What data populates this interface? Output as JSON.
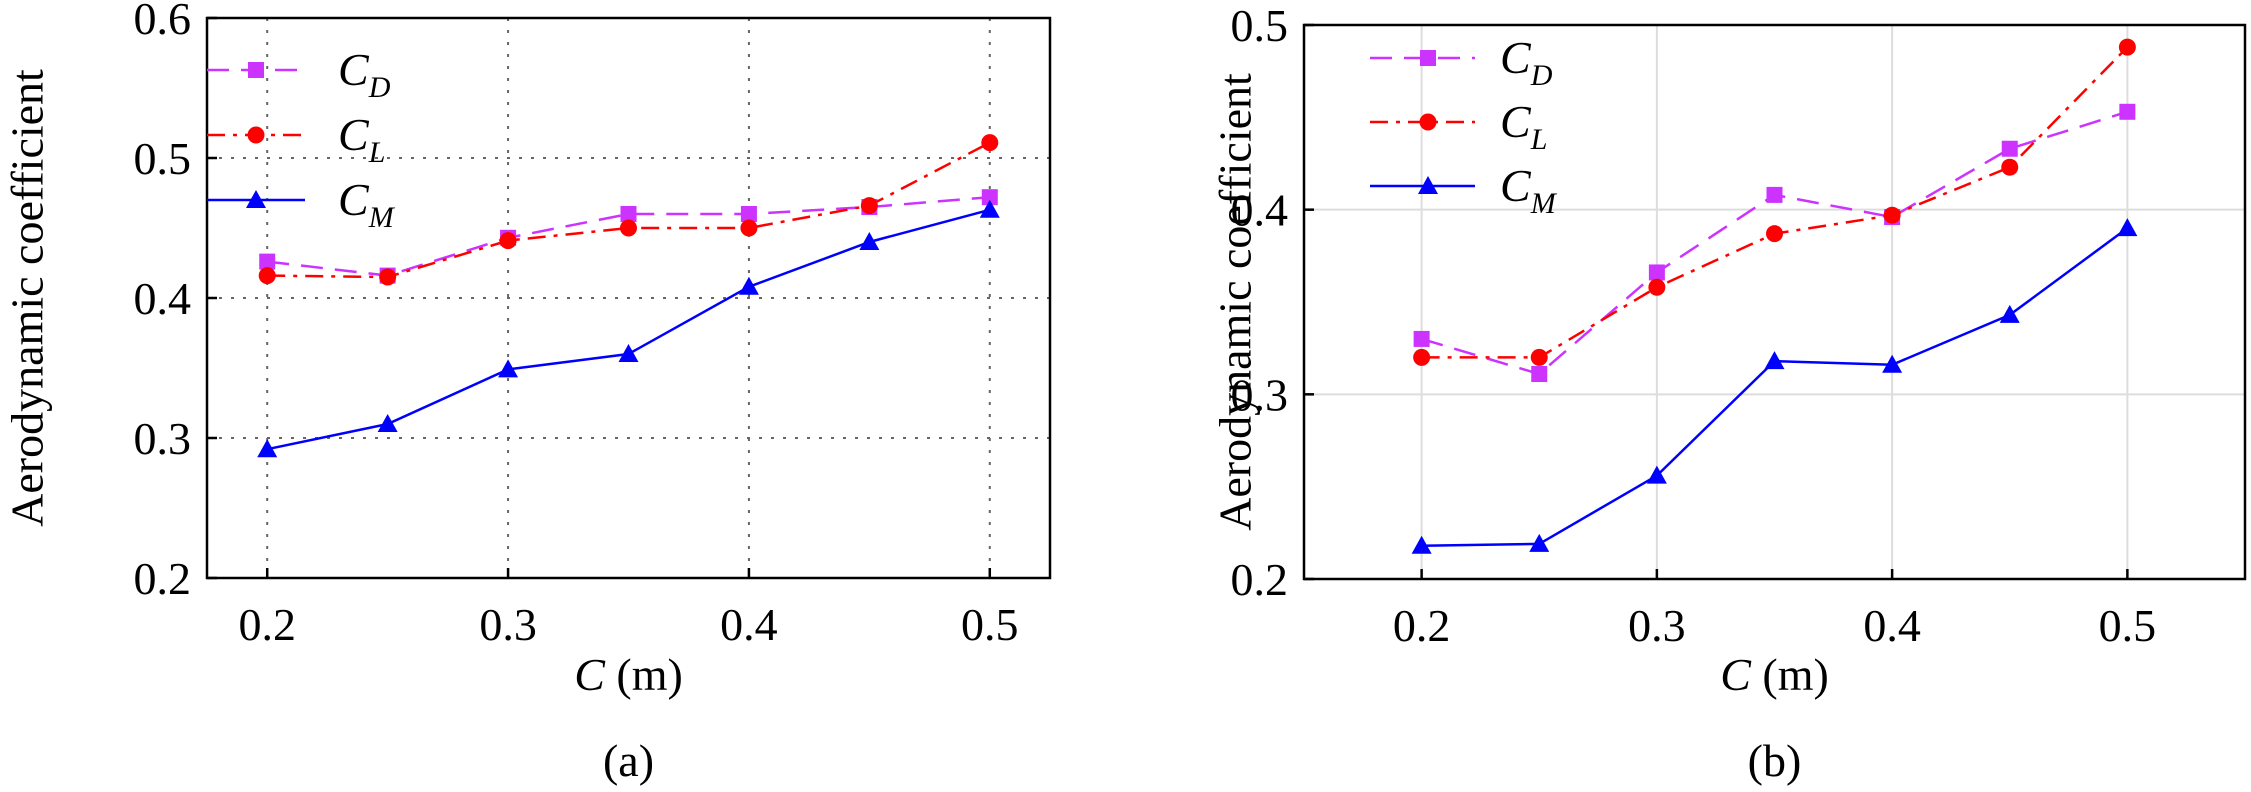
{
  "chart_data": [
    {
      "type": "line",
      "panel_label": "(a)",
      "xlabel_var": "C",
      "xlabel_unit": " (m)",
      "ylabel": "Aerodynamic coefficient",
      "xlim": [
        0.175,
        0.525
      ],
      "ylim": [
        0.2,
        0.6
      ],
      "xticks": [
        0.2,
        0.3,
        0.4,
        0.5
      ],
      "xtick_labels": [
        "0.2",
        "0.3",
        "0.4",
        "0.5"
      ],
      "yticks": [
        0.2,
        0.3,
        0.4,
        0.5,
        0.6
      ],
      "ytick_labels": [
        "0.2",
        "0.3",
        "0.4",
        "0.5",
        "0.6"
      ],
      "grid": "dotted, major ticks",
      "legend_position": "top-left",
      "x": [
        0.2,
        0.25,
        0.3,
        0.35,
        0.4,
        0.45,
        0.5
      ],
      "series": [
        {
          "name": "C",
          "subscript": "D",
          "color": "#cc33ff",
          "marker": "square",
          "dash": "dashed",
          "values": [
            0.426,
            0.416,
            0.443,
            0.46,
            0.46,
            0.465,
            0.472
          ]
        },
        {
          "name": "C",
          "subscript": "L",
          "color": "#ff0000",
          "marker": "circle",
          "dash": "dash-dot",
          "values": [
            0.416,
            0.415,
            0.441,
            0.45,
            0.45,
            0.466,
            0.511
          ]
        },
        {
          "name": "C",
          "subscript": "M",
          "color": "#0000ff",
          "marker": "triangle",
          "dash": "solid",
          "values": [
            0.292,
            0.31,
            0.349,
            0.36,
            0.408,
            0.44,
            0.463
          ]
        }
      ]
    },
    {
      "type": "line",
      "panel_label": "(b)",
      "xlabel_var": "C",
      "xlabel_unit": " (m)",
      "ylabel": "Aerodynamic coefficient",
      "xlim": [
        0.15,
        0.55
      ],
      "ylim": [
        0.2,
        0.5
      ],
      "xticks": [
        0.2,
        0.3,
        0.4,
        0.5
      ],
      "xtick_labels": [
        "0.2",
        "0.3",
        "0.4",
        "0.5"
      ],
      "yticks": [
        0.2,
        0.3,
        0.4,
        0.5
      ],
      "ytick_labels": [
        "0.2",
        "0.3",
        "0.4",
        "0.5"
      ],
      "grid": "light, major ticks",
      "legend_position": "top-left",
      "x": [
        0.2,
        0.25,
        0.3,
        0.35,
        0.4,
        0.45,
        0.5
      ],
      "series": [
        {
          "name": "C",
          "subscript": "D",
          "color": "#cc33ff",
          "marker": "square",
          "dash": "dashed",
          "values": [
            0.33,
            0.311,
            0.366,
            0.408,
            0.396,
            0.433,
            0.453
          ]
        },
        {
          "name": "C",
          "subscript": "L",
          "color": "#ff0000",
          "marker": "circle",
          "dash": "dash-dot",
          "values": [
            0.32,
            0.32,
            0.358,
            0.387,
            0.397,
            0.423,
            0.488
          ]
        },
        {
          "name": "C",
          "subscript": "M",
          "color": "#0000ff",
          "marker": "triangle",
          "dash": "solid",
          "values": [
            0.218,
            0.219,
            0.256,
            0.318,
            0.316,
            0.343,
            0.39
          ]
        }
      ]
    }
  ]
}
